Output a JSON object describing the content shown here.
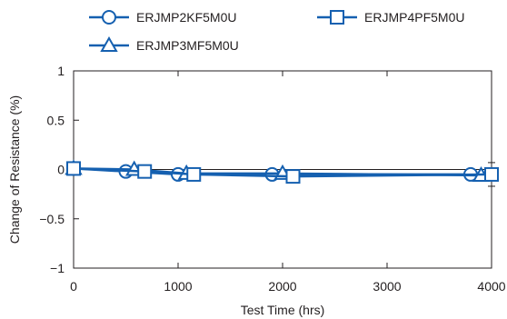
{
  "chart_data": {
    "type": "line",
    "xlabel": "Test Time (hrs)",
    "ylabel": "Change of Resistance (%)",
    "xlim": [
      0,
      4000
    ],
    "ylim": [
      -1,
      1
    ],
    "x_ticks": [
      0,
      1000,
      2000,
      3000,
      4000
    ],
    "x_tick_labels": [
      "0",
      "1000",
      "2000",
      "3000",
      "4000"
    ],
    "y_ticks": [
      1,
      0.5,
      0,
      -0.5,
      -1
    ],
    "y_tick_labels": [
      "1",
      "0.5",
      "0",
      "−0.5",
      "−1"
    ],
    "grid": false,
    "legend_position": "top",
    "line_color": "#1560b0",
    "series": [
      {
        "name": "ERJMP2KF5M0U",
        "marker": "circle",
        "x": [
          0,
          500,
          1000,
          1900,
          3800
        ],
        "y": [
          0.01,
          -0.02,
          -0.05,
          -0.05,
          -0.05
        ]
      },
      {
        "name": "ERJMP3MF5M0U",
        "marker": "triangle",
        "x": [
          0,
          580,
          1080,
          2000,
          3900
        ],
        "y": [
          0.01,
          0.0,
          -0.04,
          -0.04,
          -0.06
        ]
      },
      {
        "name": "ERJMP4PF5M0U",
        "marker": "square",
        "x": [
          0,
          680,
          1150,
          2100,
          4000
        ],
        "y": [
          0.01,
          -0.02,
          -0.05,
          -0.07,
          -0.05
        ],
        "error": [
          0,
          0,
          0,
          0.05,
          0.12
        ]
      }
    ]
  }
}
